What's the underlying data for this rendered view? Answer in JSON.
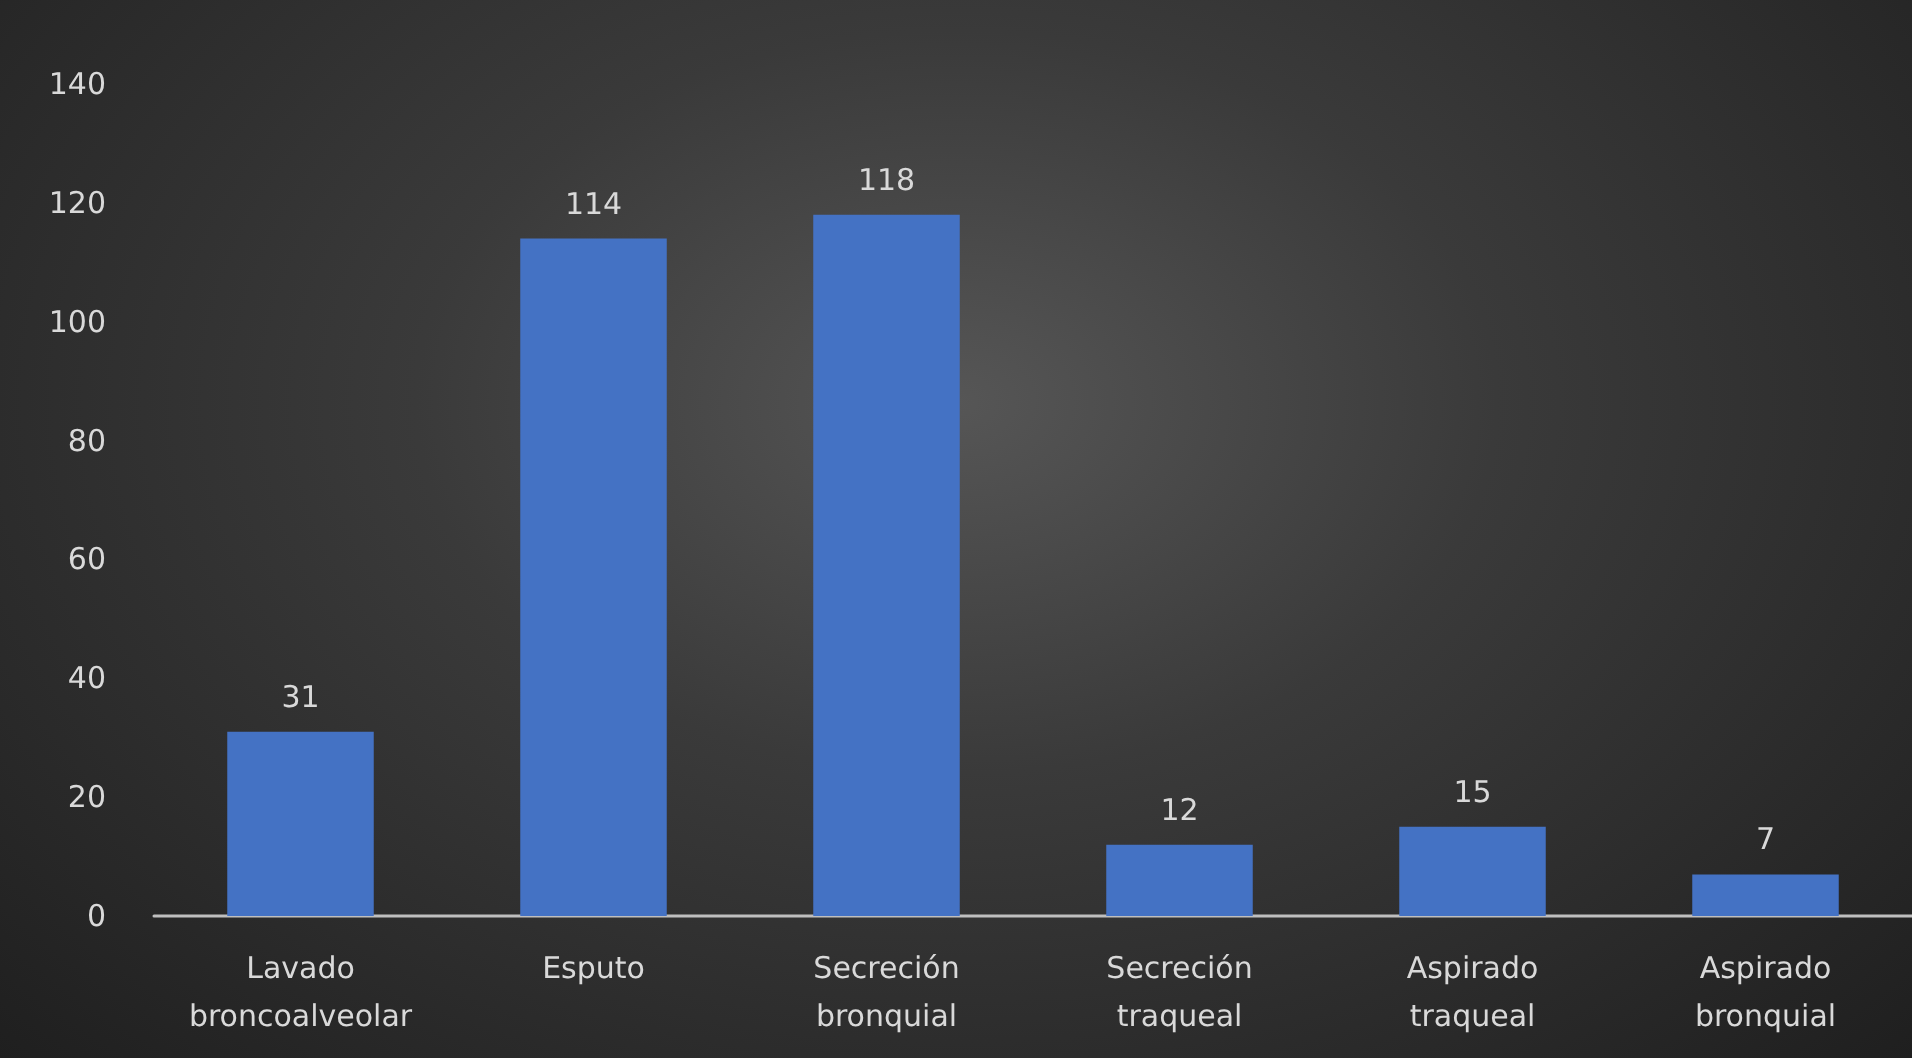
{
  "chart_data": {
    "type": "bar",
    "categories": [
      "Lavado broncoalveolar",
      "Esputo",
      "Secreción bronquial",
      "Secreción traqueal",
      "Aspirado traqueal",
      "Aspirado bronquial"
    ],
    "values": [
      31,
      114,
      118,
      12,
      15,
      7
    ],
    "color": "#4472c4",
    "ylim": [
      0,
      140
    ],
    "yticks": [
      0,
      20,
      40,
      60,
      80,
      100,
      120,
      140
    ],
    "grid": false,
    "data_labels": true
  }
}
